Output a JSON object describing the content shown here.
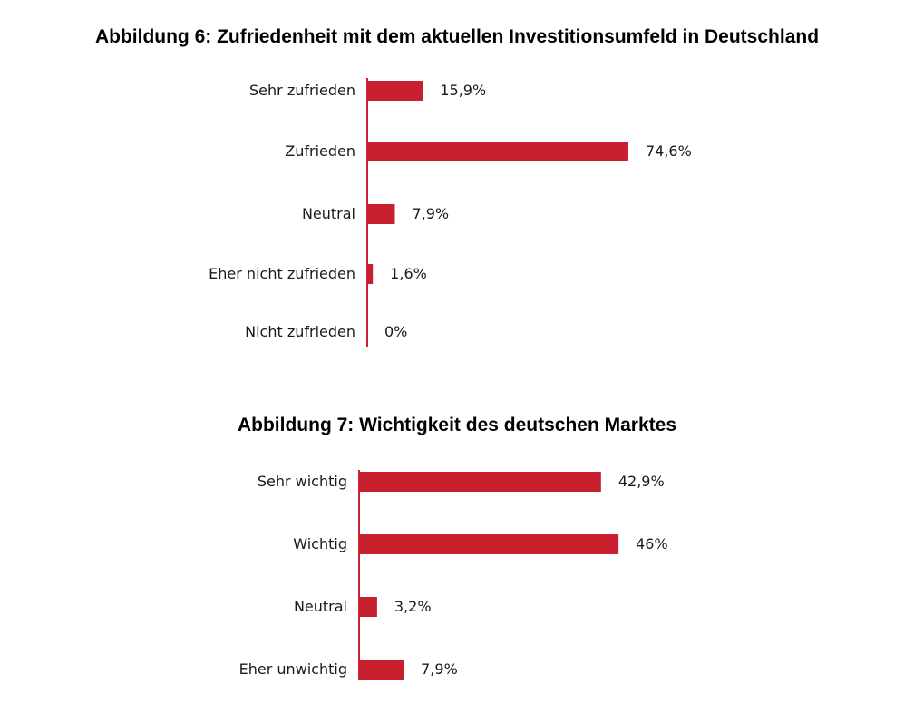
{
  "chart_data": [
    {
      "type": "bar",
      "orientation": "horizontal",
      "title": "Abbildung 6: Zufriedenheit mit dem aktuellen Investitionsumfeld in Deutschland",
      "categories": [
        "Sehr zufrieden",
        "Zufrieden",
        "Neutral",
        "Eher nicht zufrieden",
        "Nicht zufrieden"
      ],
      "values": [
        15.9,
        74.6,
        7.9,
        1.6,
        0
      ],
      "data_labels": [
        "15,9%",
        "74,6%",
        "7,9%",
        "1,6%",
        "0%"
      ],
      "unit": "%",
      "bar_color": "#c8202f",
      "grid": false,
      "legend": "none"
    },
    {
      "type": "bar",
      "orientation": "horizontal",
      "title": "Abbildung 7: Wichtigkeit des deutschen Marktes",
      "categories": [
        "Sehr wichtig",
        "Wichtig",
        "Neutral",
        "Eher unwichtig"
      ],
      "values": [
        42.9,
        46,
        3.2,
        7.9
      ],
      "data_labels": [
        "42,9%",
        "46%",
        "3,2%",
        "7,9%"
      ],
      "unit": "%",
      "bar_color": "#c8202f",
      "grid": false,
      "legend": "none"
    }
  ]
}
